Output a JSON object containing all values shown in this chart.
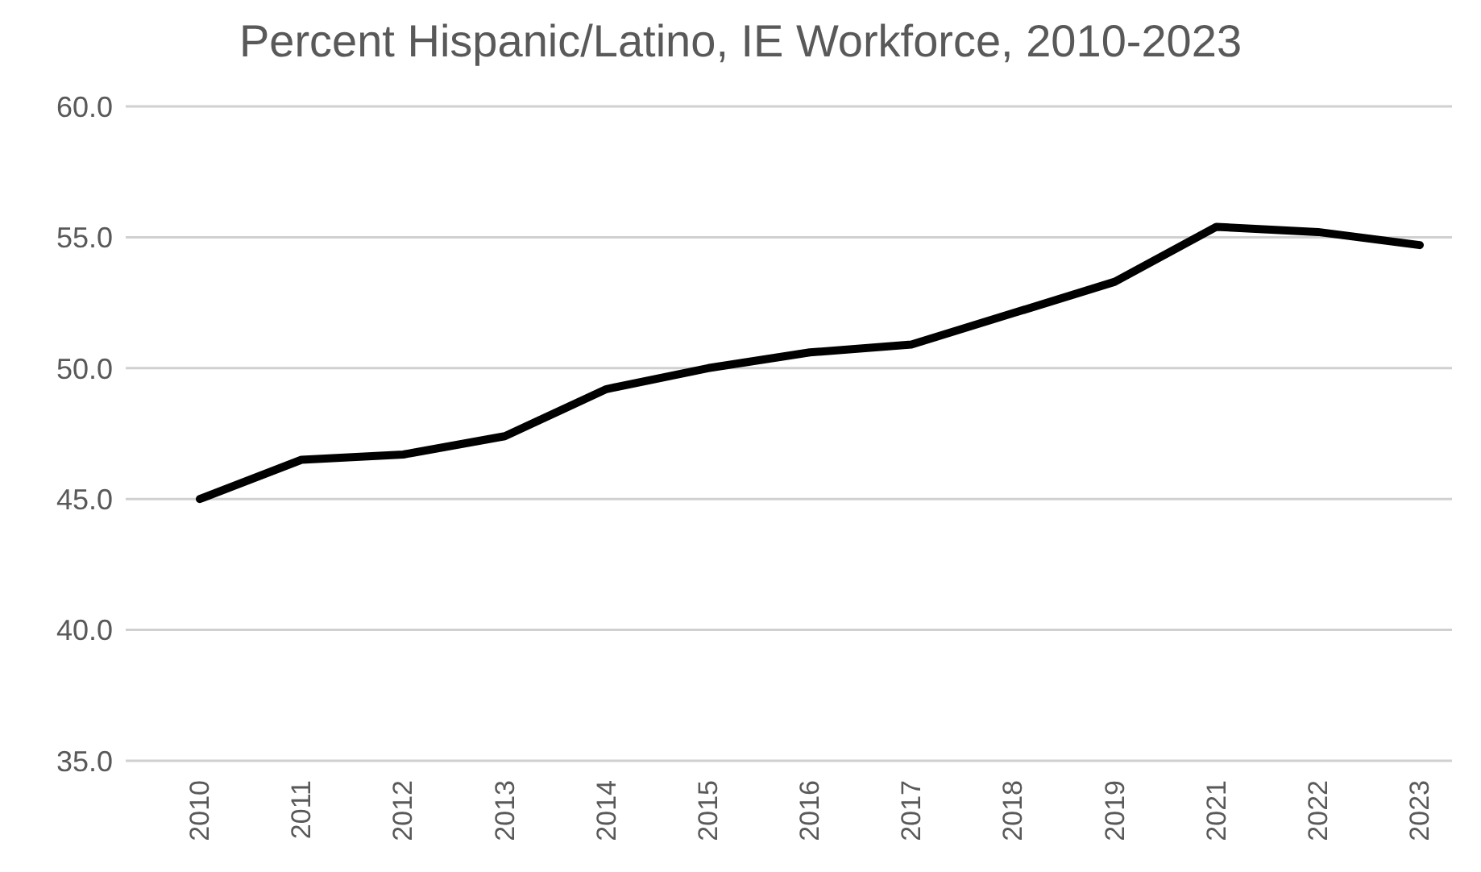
{
  "chart_data": {
    "type": "line",
    "title": "Percent Hispanic/Latino, IE Workforce, 2010-2023",
    "categories": [
      "2010",
      "2011",
      "2012",
      "2013",
      "2014",
      "2015",
      "2016",
      "2017",
      "2018",
      "2019",
      "2021",
      "2022",
      "2023"
    ],
    "series": [
      {
        "color": "#000000",
        "values": [
          45.0,
          46.5,
          46.7,
          47.4,
          49.2,
          50.0,
          50.6,
          50.9,
          52.1,
          53.3,
          55.4,
          55.2,
          54.7
        ]
      }
    ],
    "ylim": [
      35,
      60
    ],
    "yticks": [
      {
        "value": 35,
        "label": "35.0"
      },
      {
        "value": 40,
        "label": "40.0"
      },
      {
        "value": 45,
        "label": "45.0"
      },
      {
        "value": 50,
        "label": "50.0"
      },
      {
        "value": 55,
        "label": "55.0"
      },
      {
        "value": 60,
        "label": "60.0"
      }
    ],
    "grid": "y",
    "legend": false,
    "marker": "none",
    "line_style": "solid"
  }
}
